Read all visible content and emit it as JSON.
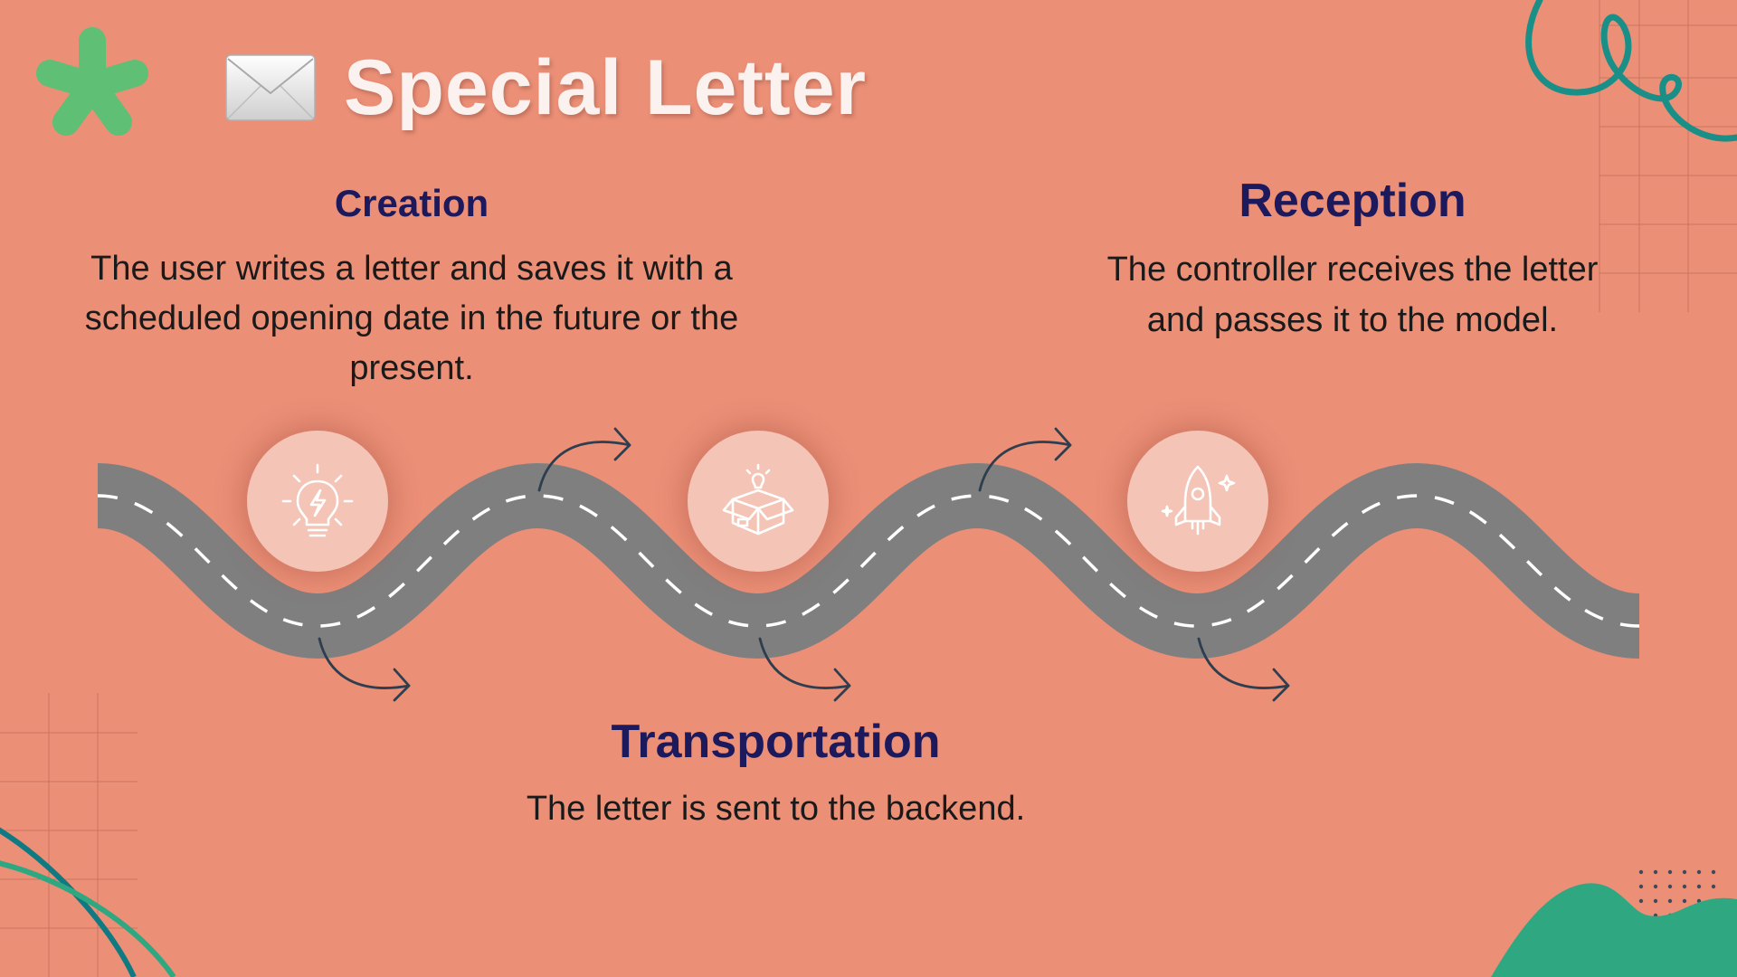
{
  "slide": {
    "title": "Special Letter",
    "title_icon": "envelope-icon"
  },
  "stages": [
    {
      "heading": "Creation",
      "text": "The user writes a letter and saves it with a scheduled opening date in the future or the present.",
      "icon": "lightbulb-icon"
    },
    {
      "heading": "Transportation",
      "text": "The letter is sent to the backend.",
      "icon": "package-icon"
    },
    {
      "heading": "Reception",
      "text": "The controller receives the letter and passes it to the model.",
      "icon": "rocket-icon"
    }
  ],
  "colors": {
    "background": "#ec8f77",
    "heading": "#1c1a5c",
    "road": "#7f7f7f",
    "teal": "#1a8f87",
    "green": "#5fbf74",
    "accent_green": "#2fa882"
  }
}
